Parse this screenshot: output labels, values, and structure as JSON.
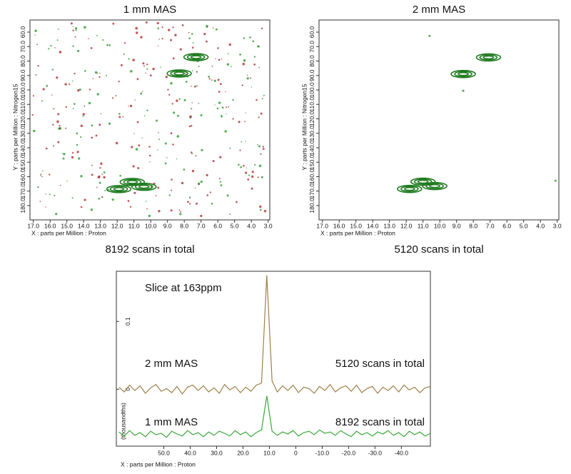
{
  "chart_data": [
    {
      "type": "contour",
      "title": "1 mm MAS",
      "x_label": "X : parts per Million : Proton",
      "y_label": "Y : parts per Million : Nitrogen15",
      "caption": "8192 scans in total",
      "xlim": [
        17.2,
        2.9
      ],
      "ylim": [
        189.9,
        51.6
      ],
      "xticks": [
        {
          "value": 17,
          "label": "17.0"
        },
        {
          "value": 16,
          "label": "16.0"
        },
        {
          "value": 15,
          "label": "15.0"
        },
        {
          "value": 14,
          "label": "14.0"
        },
        {
          "value": 13,
          "label": "13.0"
        },
        {
          "value": 12,
          "label": "12.0"
        },
        {
          "value": 11,
          "label": "11.0"
        },
        {
          "value": 10,
          "label": "10.0"
        },
        {
          "value": 9,
          "label": "9.0"
        },
        {
          "value": 8,
          "label": "8.0"
        },
        {
          "value": 7,
          "label": "7.0"
        },
        {
          "value": 6,
          "label": "6.0"
        },
        {
          "value": 5,
          "label": "5.0"
        },
        {
          "value": 4,
          "label": "4.0"
        },
        {
          "value": 3,
          "label": "3.0"
        }
      ],
      "yticks": [
        {
          "value": 60,
          "label": "60.0"
        },
        {
          "value": 70,
          "label": "70.0"
        },
        {
          "value": 80,
          "label": "80.0"
        },
        {
          "value": 90,
          "label": "90.0"
        },
        {
          "value": 100,
          "label": "100.0"
        },
        {
          "value": 110,
          "label": "110.0"
        },
        {
          "value": 120,
          "label": "120.0"
        },
        {
          "value": 130,
          "label": "130.0"
        },
        {
          "value": 140,
          "label": "140.0"
        },
        {
          "value": 150,
          "label": "150.0"
        },
        {
          "value": 160,
          "label": "160.0"
        },
        {
          "value": 170,
          "label": "170.0"
        },
        {
          "value": 180,
          "label": "180.0"
        }
      ],
      "peaks": {
        "x": [
          7.3,
          8.3,
          11.1,
          10.4,
          11.9
        ],
        "y": [
          77.3,
          88.6,
          163.7,
          167.0,
          168.6
        ]
      },
      "color": "#1e7a1e"
    },
    {
      "type": "contour",
      "title": "2 mm MAS",
      "x_label": "X : parts per Million : Proton",
      "y_label": "Y : parts per Million : Nitrogen15",
      "caption": "5120 scans in total",
      "xlim": [
        17.2,
        2.9
      ],
      "ylim": [
        189.9,
        51.6
      ],
      "xticks": [
        {
          "value": 17,
          "label": "17.0"
        },
        {
          "value": 16,
          "label": "16.0"
        },
        {
          "value": 15,
          "label": "15.0"
        },
        {
          "value": 14,
          "label": "14.0"
        },
        {
          "value": 13,
          "label": "13.0"
        },
        {
          "value": 12,
          "label": "12.0"
        },
        {
          "value": 11,
          "label": "11.0"
        },
        {
          "value": 10,
          "label": "10.0"
        },
        {
          "value": 9,
          "label": "9.0"
        },
        {
          "value": 8,
          "label": "8.0"
        },
        {
          "value": 7,
          "label": "7.0"
        },
        {
          "value": 6,
          "label": "6.0"
        },
        {
          "value": 5,
          "label": "5.0"
        },
        {
          "value": 4,
          "label": "4.0"
        },
        {
          "value": 3,
          "label": "3.0"
        }
      ],
      "yticks": [
        {
          "value": 60,
          "label": "60.0"
        },
        {
          "value": 70,
          "label": "70.0"
        },
        {
          "value": 80,
          "label": "80.0"
        },
        {
          "value": 90,
          "label": "90.0"
        },
        {
          "value": 100,
          "label": "100.0"
        },
        {
          "value": 110,
          "label": "110.0"
        },
        {
          "value": 120,
          "label": "120.0"
        },
        {
          "value": 130,
          "label": "130.0"
        },
        {
          "value": 140,
          "label": "140.0"
        },
        {
          "value": 150,
          "label": "150.0"
        },
        {
          "value": 160,
          "label": "160.0"
        },
        {
          "value": 170,
          "label": "170.0"
        },
        {
          "value": 180,
          "label": "180.0"
        }
      ],
      "peaks": {
        "x": [
          7.1,
          8.6,
          11.0,
          10.3,
          11.8
        ],
        "y": [
          77.5,
          89.0,
          163.5,
          166.5,
          168.5
        ]
      },
      "color": "#1e7a1e"
    },
    {
      "type": "line",
      "x_label": "X : parts per Million : Proton",
      "y_label": "(thousandths)",
      "annotations": [
        "Slice at 163ppm",
        "5120 scans in total",
        "8192 scans in total"
      ],
      "xlim": [
        68,
        -51
      ],
      "ylim": [
        -0.084,
        0.174
      ],
      "xticks": [
        {
          "value": 50,
          "label": "50.0"
        },
        {
          "value": 40,
          "label": "40.0"
        },
        {
          "value": 30,
          "label": "30.0"
        },
        {
          "value": 20,
          "label": "20.0"
        },
        {
          "value": 10,
          "label": "10.0"
        },
        0,
        {
          "value": -10,
          "label": "-10.0"
        },
        {
          "value": -20,
          "label": "-20.0"
        },
        {
          "value": -30,
          "label": "-30.0"
        },
        {
          "value": -40,
          "label": "-40.0"
        }
      ],
      "yticks": [
        0,
        0.1
      ],
      "x": [
        67,
        65,
        63,
        61,
        59,
        57,
        55,
        53,
        51,
        49,
        47,
        45,
        43,
        41,
        39,
        37,
        35,
        33,
        31,
        29,
        27,
        25,
        23,
        21,
        19,
        17,
        15,
        13,
        11,
        9,
        7,
        5,
        3,
        1,
        -1,
        -3,
        -5,
        -7,
        -9,
        -11,
        -13,
        -15,
        -17,
        -19,
        -21,
        -23,
        -25,
        -27,
        -29,
        -31,
        -33,
        -35,
        -37,
        -39,
        -41,
        -43,
        -45,
        -47,
        -49,
        -51
      ],
      "series": [
        {
          "name": "2 mm MAS",
          "color": "#a0804a",
          "values": [
            0.003,
            -0.004,
            0.006,
            -0.002,
            0.005,
            -0.006,
            0.002,
            0.007,
            -0.003,
            0.001,
            -0.005,
            0.004,
            -0.007,
            0.003,
            0.006,
            -0.002,
            0.005,
            -0.004,
            0.002,
            -0.006,
            0.007,
            -0.001,
            0.004,
            -0.005,
            0.003,
            -0.003,
            0.006,
            0.009,
            0.168,
            0.012,
            -0.004,
            0.005,
            -0.002,
            0.006,
            -0.005,
            0.003,
            0.001,
            -0.006,
            0.004,
            -0.002,
            0.007,
            -0.004,
            0.002,
            0.005,
            -0.003,
            0.006,
            -0.005,
            0.001,
            0.004,
            -0.006,
            0.003,
            -0.002,
            0.005,
            -0.004,
            0.006,
            -0.001,
            0.003,
            -0.005,
            0.002,
            0.004
          ]
        },
        {
          "name": "1 mm MAS",
          "color": "#3aa83a",
          "values": [
            -0.063,
            -0.069,
            -0.061,
            -0.068,
            -0.064,
            -0.07,
            -0.062,
            -0.067,
            -0.065,
            -0.071,
            -0.062,
            -0.066,
            -0.069,
            -0.061,
            -0.067,
            -0.064,
            -0.07,
            -0.063,
            -0.068,
            -0.062,
            -0.065,
            -0.069,
            -0.061,
            -0.067,
            -0.063,
            -0.07,
            -0.064,
            -0.06,
            -0.01,
            -0.062,
            -0.068,
            -0.063,
            -0.066,
            -0.061,
            -0.069,
            -0.064,
            -0.062,
            -0.067,
            -0.06,
            -0.065,
            -0.063,
            -0.068,
            -0.061,
            -0.066,
            -0.07,
            -0.062,
            -0.067,
            -0.064,
            -0.069,
            -0.063,
            -0.066,
            -0.061,
            -0.068,
            -0.064,
            -0.07,
            -0.062,
            -0.067,
            -0.063,
            -0.069,
            -0.065
          ]
        }
      ]
    }
  ]
}
